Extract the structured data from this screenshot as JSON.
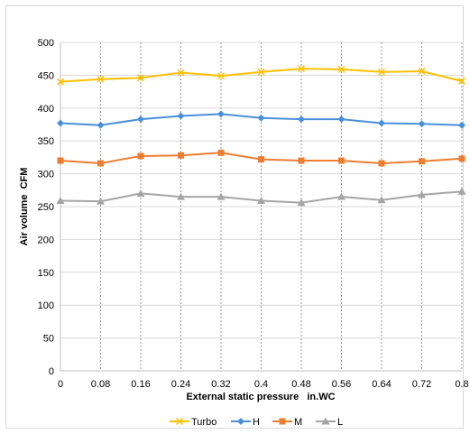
{
  "chart_data": {
    "type": "line",
    "title": "",
    "xlabel": "External static pressure   in.WC",
    "ylabel": "Air volume  CFM",
    "x": [
      "0",
      "0.08",
      "0.16",
      "0.24",
      "0.32",
      "0.4",
      "0.48",
      "0.56",
      "0.64",
      "0.72",
      "0.8"
    ],
    "ylim": [
      0,
      500
    ],
    "yticks": [
      0,
      50,
      100,
      150,
      200,
      250,
      300,
      350,
      400,
      450,
      500
    ],
    "grid": {
      "horizontal": true,
      "vertical": "dashed"
    },
    "legend_position": "bottom",
    "series": [
      {
        "name": "Turbo",
        "color": "#FFC000",
        "marker": "x",
        "values": [
          440,
          444,
          446,
          454,
          449,
          455,
          460,
          459,
          455,
          456,
          441
        ]
      },
      {
        "name": "H",
        "color": "#4A90D9",
        "marker": "diamond",
        "values": [
          377,
          374,
          383,
          388,
          391,
          385,
          383,
          383,
          377,
          376,
          374
        ]
      },
      {
        "name": "M",
        "color": "#ED7D31",
        "marker": "square",
        "values": [
          320,
          316,
          327,
          328,
          332,
          322,
          320,
          320,
          316,
          319,
          323
        ]
      },
      {
        "name": "L",
        "color": "#A5A5A5",
        "marker": "triangle",
        "values": [
          259,
          258,
          270,
          265,
          265,
          259,
          256,
          265,
          260,
          268,
          273
        ]
      }
    ]
  }
}
